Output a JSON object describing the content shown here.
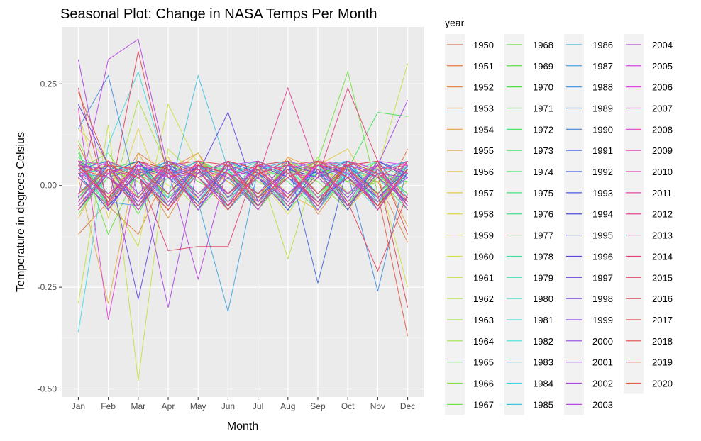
{
  "chart_data": {
    "type": "line",
    "title": "Seasonal Plot: Change in NASA Temps Per Month",
    "xlabel": "Month",
    "ylabel": "Temperature in degrees Celsius",
    "categories": [
      "Jan",
      "Feb",
      "Mar",
      "Apr",
      "May",
      "Jun",
      "Jul",
      "Aug",
      "Sep",
      "Oct",
      "Nov",
      "Dec"
    ],
    "y_ticks": [
      0.25,
      0.0,
      -0.25,
      -0.5
    ],
    "y_tick_labels": [
      "0.25",
      "0.00",
      "-0.25",
      "-0.50"
    ],
    "ylim": [
      -0.52,
      0.39
    ],
    "legend_title": "year",
    "legend_position": "right",
    "series": [
      {
        "name": "1950",
        "values": [
          -0.03,
          0.06,
          0.02,
          -0.05,
          0.04,
          -0.02,
          0.03,
          -0.06,
          0.05,
          0.01,
          -0.04,
          0.02
        ]
      },
      {
        "name": "1951",
        "values": [
          -0.12,
          -0.04,
          0.08,
          0.03,
          0.06,
          0.02,
          -0.03,
          0.07,
          -0.02,
          0.05,
          -0.06,
          0.09
        ]
      },
      {
        "name": "1952",
        "values": [
          0.1,
          -0.05,
          -0.12,
          0.04,
          0.08,
          -0.03,
          0.02,
          0.05,
          -0.07,
          0.03,
          0.01,
          -0.14
        ]
      },
      {
        "name": "1953",
        "values": [
          0.06,
          0.02,
          0.04,
          -0.08,
          0.05,
          0.01,
          -0.04,
          0.06,
          0.03,
          -0.05,
          0.02,
          -0.06
        ]
      },
      {
        "name": "1954",
        "values": [
          -0.06,
          0.04,
          -0.05,
          0.06,
          -0.03,
          0.05,
          -0.04,
          0.02,
          0.06,
          -0.02,
          0.05,
          -0.1
        ]
      },
      {
        "name": "1955",
        "values": [
          0.02,
          -0.29,
          0.08,
          -0.04,
          0.06,
          0.01,
          -0.05,
          0.07,
          0.04,
          -0.06,
          0.03,
          -0.02
        ]
      },
      {
        "name": "1956",
        "values": [
          -0.08,
          0.05,
          0.02,
          0.07,
          -0.04,
          0.03,
          0.05,
          -0.02,
          -0.06,
          0.04,
          0.02,
          -0.03
        ]
      },
      {
        "name": "1957",
        "values": [
          0.14,
          0.06,
          -0.05,
          0.02,
          0.08,
          -0.06,
          0.04,
          0.02,
          0.05,
          0.09,
          -0.03,
          0.04
        ]
      },
      {
        "name": "1958",
        "values": [
          0.18,
          -0.08,
          0.14,
          -0.06,
          0.04,
          0.03,
          -0.02,
          0.06,
          -0.04,
          0.02,
          -0.05,
          0.01
        ]
      },
      {
        "name": "1959",
        "values": [
          -0.05,
          0.02,
          0.06,
          0.0,
          -0.03,
          0.05,
          0.02,
          -0.07,
          0.04,
          0.01,
          -0.02,
          0.05
        ]
      },
      {
        "name": "1960",
        "values": [
          0.03,
          -0.02,
          -0.15,
          0.2,
          0.05,
          -0.04,
          0.02,
          0.04,
          -0.03,
          0.06,
          0.03,
          -0.25
        ]
      },
      {
        "name": "1961",
        "values": [
          -0.29,
          0.15,
          -0.48,
          0.09,
          0.02,
          0.03,
          -0.04,
          0.06,
          0.02,
          -0.05,
          0.04,
          0.3
        ]
      },
      {
        "name": "1962",
        "values": [
          0.05,
          0.03,
          0.02,
          -0.06,
          0.04,
          -0.02,
          0.05,
          -0.18,
          0.06,
          0.02,
          -0.04,
          0.03
        ]
      },
      {
        "name": "1963",
        "values": [
          0.07,
          -0.06,
          0.21,
          0.04,
          -0.05,
          0.06,
          0.01,
          -0.03,
          0.05,
          0.02,
          0.03,
          -0.04
        ]
      },
      {
        "name": "1964",
        "values": [
          -0.03,
          0.04,
          0.01,
          -0.05,
          0.06,
          0.03,
          -0.02,
          0.04,
          0.01,
          -0.06,
          0.05,
          0.02
        ]
      },
      {
        "name": "1965",
        "values": [
          0.11,
          -0.04,
          0.05,
          0.02,
          -0.06,
          0.04,
          0.06,
          -0.03,
          0.07,
          -0.02,
          0.01,
          0.04
        ]
      },
      {
        "name": "1966",
        "values": [
          0.04,
          0.08,
          -0.03,
          0.05,
          0.02,
          -0.05,
          0.03,
          0.06,
          -0.02,
          0.04,
          -0.03,
          0.02
        ]
      },
      {
        "name": "1967",
        "values": [
          -0.07,
          0.03,
          0.06,
          -0.04,
          0.05,
          0.02,
          -0.05,
          0.03,
          0.06,
          0.28,
          -0.02,
          0.05
        ]
      },
      {
        "name": "1968",
        "values": [
          0.09,
          -0.12,
          0.04,
          0.03,
          -0.04,
          0.06,
          0.02,
          -0.05,
          0.03,
          0.01,
          0.06,
          -0.03
        ]
      },
      {
        "name": "1969",
        "values": [
          0.02,
          0.05,
          -0.07,
          0.06,
          0.01,
          -0.03,
          0.05,
          0.02,
          -0.04,
          0.06,
          -0.02,
          0.04
        ]
      },
      {
        "name": "1970",
        "values": [
          -0.04,
          0.06,
          0.03,
          -0.02,
          0.05,
          0.04,
          -0.06,
          0.03,
          0.05,
          -0.04,
          0.02,
          0.01
        ]
      },
      {
        "name": "1971",
        "values": [
          0.06,
          -0.03,
          0.02,
          0.05,
          -0.06,
          0.02,
          0.04,
          -0.02,
          0.03,
          0.05,
          -0.05,
          0.06
        ]
      },
      {
        "name": "1972",
        "values": [
          -0.02,
          0.04,
          0.06,
          -0.03,
          0.04,
          -0.05,
          0.03,
          0.06,
          -0.02,
          0.04,
          0.18,
          0.17
        ]
      },
      {
        "name": "1973",
        "values": [
          0.08,
          -0.05,
          0.03,
          0.06,
          0.02,
          -0.04,
          0.05,
          0.01,
          -0.06,
          0.03,
          0.04,
          -0.02
        ]
      },
      {
        "name": "1974",
        "values": [
          -0.06,
          0.02,
          0.05,
          -0.04,
          0.06,
          0.03,
          -0.03,
          0.05,
          0.02,
          -0.05,
          0.06,
          0.03
        ]
      },
      {
        "name": "1975",
        "values": [
          0.05,
          0.06,
          -0.02,
          0.04,
          -0.03,
          0.05,
          0.02,
          -0.04,
          0.06,
          0.02,
          -0.03,
          0.05
        ]
      },
      {
        "name": "1976",
        "values": [
          0.03,
          -0.06,
          0.04,
          0.02,
          0.05,
          -0.02,
          0.06,
          0.03,
          -0.05,
          0.04,
          0.02,
          -0.06
        ]
      },
      {
        "name": "1977",
        "values": [
          -0.05,
          0.03,
          0.06,
          -0.05,
          0.03,
          0.04,
          -0.04,
          0.02,
          0.05,
          -0.03,
          0.06,
          0.02
        ]
      },
      {
        "name": "1978",
        "values": [
          0.07,
          0.02,
          -0.04,
          0.06,
          -0.02,
          0.03,
          0.05,
          -0.06,
          0.02,
          0.06,
          -0.04,
          0.03
        ]
      },
      {
        "name": "1979",
        "values": [
          0.02,
          -0.04,
          0.05,
          0.03,
          0.06,
          -0.06,
          0.02,
          0.04,
          -0.03,
          0.05,
          0.03,
          -0.05
        ]
      },
      {
        "name": "1980",
        "values": [
          -0.03,
          0.05,
          0.02,
          -0.06,
          0.04,
          0.05,
          -0.02,
          0.06,
          0.03,
          -0.04,
          0.05,
          0.02
        ]
      },
      {
        "name": "1981",
        "values": [
          0.06,
          -0.02,
          0.04,
          0.05,
          -0.05,
          0.02,
          0.06,
          -0.03,
          0.04,
          0.02,
          -0.06,
          0.04
        ]
      },
      {
        "name": "1982",
        "values": [
          0.04,
          0.03,
          -0.06,
          0.02,
          0.05,
          -0.03,
          0.04,
          0.05,
          -0.04,
          0.03,
          0.06,
          -0.03
        ]
      },
      {
        "name": "1983",
        "values": [
          -0.36,
          0.1,
          0.28,
          0.03,
          -0.04,
          0.06,
          0.02,
          -0.05,
          0.04,
          0.06,
          -0.02,
          0.05
        ]
      },
      {
        "name": "1984",
        "values": [
          0.05,
          -0.05,
          0.03,
          0.06,
          0.02,
          -0.04,
          0.05,
          0.03,
          -0.06,
          0.04,
          0.02,
          -0.04
        ]
      },
      {
        "name": "1985",
        "values": [
          -0.04,
          0.06,
          0.02,
          -0.03,
          0.27,
          0.04,
          -0.05,
          0.02,
          0.06,
          -0.05,
          0.03,
          0.06
        ]
      },
      {
        "name": "1986",
        "values": [
          0.03,
          0.02,
          0.05,
          -0.05,
          0.03,
          0.06,
          -0.03,
          0.04,
          0.02,
          0.05,
          -0.04,
          0.02
        ]
      },
      {
        "name": "1987",
        "values": [
          0.06,
          -0.04,
          -0.05,
          0.04,
          -0.04,
          -0.31,
          0.04,
          0.06,
          -0.03,
          0.02,
          0.05,
          -0.06
        ]
      },
      {
        "name": "1988",
        "values": [
          -0.02,
          0.05,
          0.04,
          0.02,
          0.06,
          -0.05,
          0.03,
          -0.04,
          0.05,
          0.06,
          -0.03,
          0.04
        ]
      },
      {
        "name": "1989",
        "values": [
          0.14,
          0.27,
          -0.03,
          0.05,
          -0.02,
          0.04,
          0.06,
          0.02,
          -0.05,
          0.03,
          -0.26,
          0.05
        ]
      },
      {
        "name": "1990",
        "values": [
          0.05,
          -0.03,
          0.06,
          -0.04,
          0.05,
          0.02,
          -0.06,
          0.05,
          0.03,
          -0.02,
          0.04,
          0.06
        ]
      },
      {
        "name": "1991",
        "values": [
          -0.05,
          0.04,
          0.02,
          0.06,
          -0.03,
          0.05,
          0.02,
          -0.04,
          0.06,
          0.04,
          -0.05,
          0.03
        ]
      },
      {
        "name": "1992",
        "values": [
          0.04,
          0.06,
          -0.05,
          0.03,
          0.04,
          -0.02,
          0.05,
          0.06,
          -0.24,
          0.05,
          0.02,
          -0.04
        ]
      },
      {
        "name": "1993",
        "values": [
          0.02,
          -0.05,
          0.03,
          0.05,
          -0.06,
          0.06,
          0.03,
          -0.02,
          0.04,
          -0.06,
          0.06,
          0.02
        ]
      },
      {
        "name": "1994",
        "values": [
          -0.06,
          0.03,
          0.06,
          -0.02,
          0.05,
          0.03,
          -0.05,
          0.04,
          0.02,
          0.05,
          -0.02,
          0.06
        ]
      },
      {
        "name": "1995",
        "values": [
          0.06,
          0.02,
          -0.04,
          0.04,
          0.02,
          -0.05,
          0.06,
          0.03,
          -0.04,
          0.02,
          0.05,
          -0.05
        ]
      },
      {
        "name": "1996",
        "values": [
          0.03,
          -0.06,
          0.05,
          0.02,
          -0.04,
          0.04,
          0.02,
          -0.06,
          0.05,
          0.03,
          -0.03,
          0.04
        ]
      },
      {
        "name": "1997",
        "values": [
          0.2,
          0.05,
          -0.28,
          0.06,
          0.03,
          0.18,
          -0.04,
          0.05,
          0.03,
          0.06,
          0.04,
          -0.05
        ]
      },
      {
        "name": "1998",
        "values": [
          0.05,
          0.04,
          0.02,
          -0.05,
          0.06,
          -0.03,
          0.05,
          0.02,
          -0.04,
          0.05,
          0.06,
          0.03
        ]
      },
      {
        "name": "1999",
        "values": [
          -0.04,
          0.05,
          -0.06,
          0.05,
          0.02,
          0.06,
          -0.03,
          0.04,
          0.06,
          -0.05,
          0.03,
          0.02
        ]
      },
      {
        "name": "2000",
        "values": [
          0.04,
          -0.03,
          0.05,
          0.03,
          -0.05,
          0.02,
          0.04,
          -0.05,
          0.03,
          0.04,
          -0.06,
          0.05
        ]
      },
      {
        "name": "2001",
        "values": [
          0.06,
          0.02,
          -0.03,
          0.06,
          0.04,
          -0.06,
          0.03,
          0.05,
          -0.02,
          0.06,
          0.02,
          -0.04
        ]
      },
      {
        "name": "2002",
        "values": [
          0.31,
          -0.06,
          0.04,
          -0.3,
          0.05,
          0.03,
          -0.02,
          0.06,
          0.04,
          -0.03,
          0.05,
          0.21
        ]
      },
      {
        "name": "2003",
        "values": [
          -0.03,
          0.31,
          0.36,
          0.04,
          -0.23,
          0.05,
          0.06,
          -0.03,
          0.05,
          0.02,
          -0.04,
          0.06
        ]
      },
      {
        "name": "2004",
        "values": [
          0.05,
          -0.04,
          0.06,
          0.02,
          0.03,
          -0.02,
          0.05,
          0.04,
          -0.06,
          0.05,
          0.03,
          -0.03
        ]
      },
      {
        "name": "2005",
        "values": [
          0.02,
          0.06,
          -0.02,
          0.05,
          -0.06,
          0.04,
          0.02,
          -0.03,
          0.06,
          0.03,
          -0.05,
          0.04
        ]
      },
      {
        "name": "2006",
        "values": [
          -0.05,
          0.03,
          0.05,
          -0.04,
          0.06,
          0.05,
          -0.04,
          0.03,
          0.02,
          -0.04,
          0.06,
          0.05
        ]
      },
      {
        "name": "2007",
        "values": [
          0.19,
          -0.33,
          0.05,
          0.03,
          -0.03,
          0.06,
          0.04,
          -0.02,
          0.05,
          0.04,
          -0.03,
          0.02
        ]
      },
      {
        "name": "2008",
        "values": [
          0.06,
          0.05,
          -0.04,
          0.06,
          0.02,
          -0.05,
          0.06,
          0.03,
          -0.05,
          0.06,
          0.04,
          -0.05
        ]
      },
      {
        "name": "2009",
        "values": [
          0.03,
          -0.02,
          0.04,
          0.02,
          0.05,
          0.03,
          -0.06,
          0.05,
          0.04,
          -0.02,
          0.05,
          0.03
        ]
      },
      {
        "name": "2010",
        "values": [
          -0.04,
          0.06,
          0.03,
          -0.05,
          0.04,
          0.02,
          0.05,
          -0.04,
          0.06,
          0.05,
          -0.06,
          0.04
        ]
      },
      {
        "name": "2011",
        "values": [
          0.05,
          0.03,
          -0.06,
          0.04,
          -0.02,
          0.05,
          0.03,
          0.06,
          -0.03,
          0.02,
          0.05,
          -0.06
        ]
      },
      {
        "name": "2012",
        "values": [
          0.02,
          -0.05,
          0.06,
          0.03,
          0.05,
          -0.04,
          0.02,
          0.24,
          0.03,
          -0.05,
          0.04,
          0.05
        ]
      },
      {
        "name": "2013",
        "values": [
          -0.06,
          0.04,
          0.02,
          -0.06,
          0.03,
          0.06,
          -0.05,
          0.02,
          0.05,
          0.04,
          -0.02,
          0.06
        ]
      },
      {
        "name": "2014",
        "values": [
          0.04,
          0.02,
          -0.05,
          0.05,
          0.06,
          -0.02,
          0.04,
          -0.05,
          0.02,
          0.24,
          0.06,
          -0.04
        ]
      },
      {
        "name": "2015",
        "values": [
          0.06,
          -0.04,
          0.03,
          -0.16,
          -0.15,
          -0.15,
          0.06,
          0.03,
          -0.04,
          0.05,
          0.02,
          0.06
        ]
      },
      {
        "name": "2016",
        "values": [
          0.24,
          -0.05,
          0.33,
          0.02,
          0.04,
          -0.05,
          0.03,
          0.05,
          0.06,
          -0.04,
          -0.21,
          -0.02
        ]
      },
      {
        "name": "2017",
        "values": [
          0.03,
          0.05,
          0.02,
          -0.06,
          0.05,
          0.03,
          -0.02,
          0.04,
          -0.05,
          0.06,
          0.03,
          -0.3
        ]
      },
      {
        "name": "2018",
        "values": [
          0.05,
          -0.03,
          0.06,
          0.04,
          -0.05,
          0.06,
          0.04,
          -0.03,
          0.06,
          0.02,
          -0.05,
          0.04
        ]
      },
      {
        "name": "2019",
        "values": [
          -0.02,
          0.04,
          -0.03,
          0.06,
          0.02,
          -0.06,
          0.05,
          0.06,
          -0.02,
          0.05,
          0.06,
          -0.12
        ]
      },
      {
        "name": "2020",
        "values": [
          0.23,
          0.05,
          0.04,
          -0.02,
          0.06,
          0.05,
          -0.03,
          0.02,
          0.06,
          0.04,
          -0.02,
          -0.37
        ]
      }
    ]
  }
}
